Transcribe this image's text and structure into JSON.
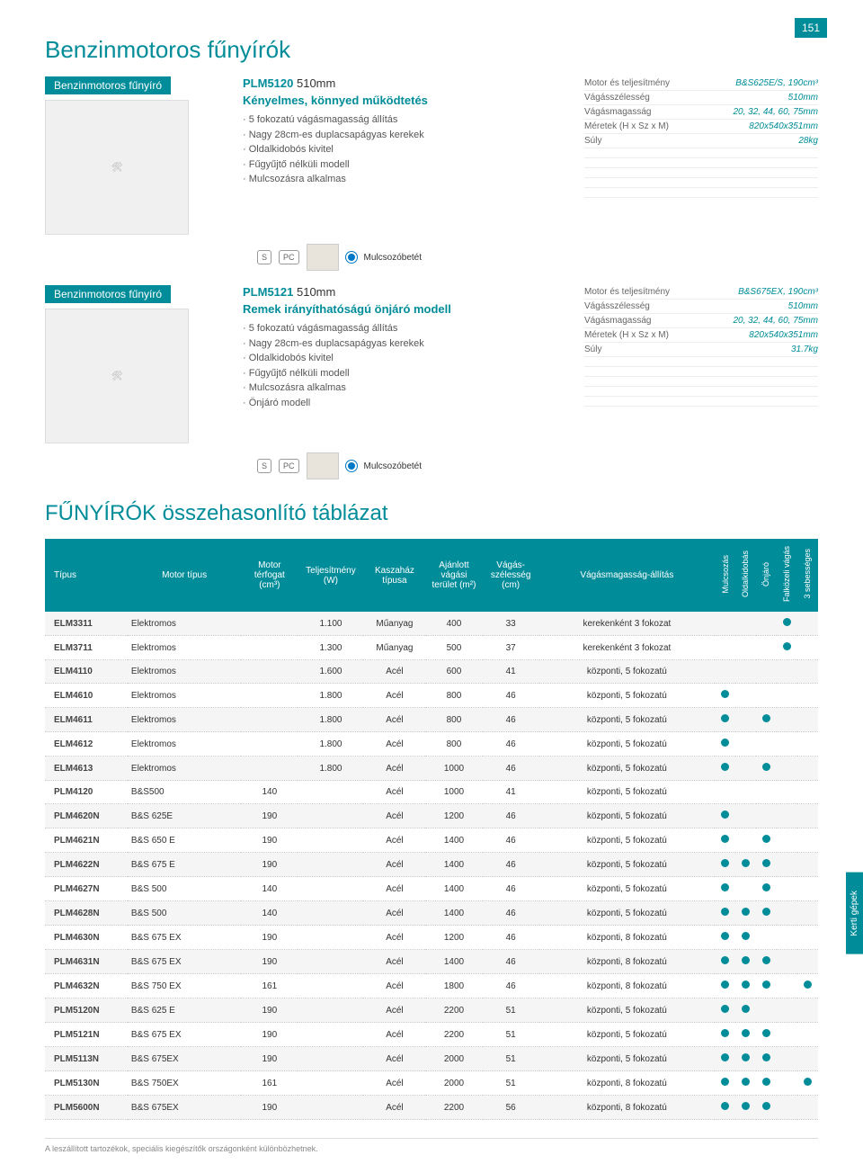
{
  "page_number": "151",
  "title": "Benzinmotoros fűnyírók",
  "side_tab": "Kerti gépek",
  "footnote": "A leszállított tartozékok, speciális kiegészítők országonként különbözhetnek.",
  "products": [
    {
      "category": "Benzinmotoros fűnyíró",
      "model_code": "PLM5120",
      "model_size": "510mm",
      "tagline": "Kényelmes, könnyed működtetés",
      "features": [
        "· 5 fokozatú vágásmagasság állítás",
        "· Nagy 28cm-es duplacsapágyas kerekek",
        "· Oldalkidobós kivitel",
        "· Fűgyűjtő nélküli modell",
        "· Mulcsozásra alkalmas"
      ],
      "specs": [
        {
          "k": "Motor és teljesítmény",
          "v": "B&S625E/S, 190cm³"
        },
        {
          "k": "Vágásszélesség",
          "v": "510mm"
        },
        {
          "k": "Vágásmagasság",
          "v": "20, 32, 44, 60, 75mm"
        },
        {
          "k": "Méretek (H x Sz x M)",
          "v": "820x540x351mm"
        },
        {
          "k": "Súly",
          "v": "28kg"
        }
      ],
      "accessory": "Mulcsozóbetét"
    },
    {
      "category": "Benzinmotoros fűnyíró",
      "model_code": "PLM5121",
      "model_size": "510mm",
      "tagline": "Remek irányíthatóságú önjáró modell",
      "features": [
        "· 5 fokozatú vágásmagasság állítás",
        "· Nagy 28cm-es duplacsapágyas kerekek",
        "· Oldalkidobós kivitel",
        "· Fűgyűjtő nélküli modell",
        "· Mulcsozásra alkalmas",
        "· Önjáró modell"
      ],
      "specs": [
        {
          "k": "Motor és teljesítmény",
          "v": "B&S675EX, 190cm³"
        },
        {
          "k": "Vágásszélesség",
          "v": "510mm"
        },
        {
          "k": "Vágásmagasság",
          "v": "20, 32, 44, 60, 75mm"
        },
        {
          "k": "Méretek (H x Sz x M)",
          "v": "820x540x351mm"
        },
        {
          "k": "Súly",
          "v": "31.7kg"
        }
      ],
      "accessory": "Mulcsozóbetét"
    }
  ],
  "comparison": {
    "title": "FŰNYÍRÓK összehasonlító táblázat",
    "headers": [
      "Típus",
      "Motor típus",
      "Motor térfogat (cm³)",
      "Teljesítmény (W)",
      "Kaszaház típusa",
      "Ajánlott vágási terület (m²)",
      "Vágás-szélesség (cm)",
      "Vágásmagasság-állítás"
    ],
    "flag_headers": [
      "Mulcsozás",
      "Oldalkidobás",
      "Önjáró",
      "Falközeli vágás",
      "3 sebességes"
    ],
    "rows": [
      {
        "c": [
          "ELM3311",
          "Elektromos",
          "",
          "1.100",
          "Műanyag",
          "400",
          "33",
          "kerekenként 3 fokozat"
        ],
        "f": [
          0,
          0,
          0,
          1,
          0
        ]
      },
      {
        "c": [
          "ELM3711",
          "Elektromos",
          "",
          "1.300",
          "Műanyag",
          "500",
          "37",
          "kerekenként 3 fokozat"
        ],
        "f": [
          0,
          0,
          0,
          1,
          0
        ]
      },
      {
        "c": [
          "ELM4110",
          "Elektromos",
          "",
          "1.600",
          "Acél",
          "600",
          "41",
          "központi, 5 fokozatú"
        ],
        "f": [
          0,
          0,
          0,
          0,
          0
        ]
      },
      {
        "c": [
          "ELM4610",
          "Elektromos",
          "",
          "1.800",
          "Acél",
          "800",
          "46",
          "központi, 5 fokozatú"
        ],
        "f": [
          1,
          0,
          0,
          0,
          0
        ]
      },
      {
        "c": [
          "ELM4611",
          "Elektromos",
          "",
          "1.800",
          "Acél",
          "800",
          "46",
          "központi, 5 fokozatú"
        ],
        "f": [
          1,
          0,
          1,
          0,
          0
        ]
      },
      {
        "c": [
          "ELM4612",
          "Elektromos",
          "",
          "1.800",
          "Acél",
          "800",
          "46",
          "központi, 5 fokozatú"
        ],
        "f": [
          1,
          0,
          0,
          0,
          0
        ]
      },
      {
        "c": [
          "ELM4613",
          "Elektromos",
          "",
          "1.800",
          "Acél",
          "1000",
          "46",
          "központi, 5 fokozatú"
        ],
        "f": [
          1,
          0,
          1,
          0,
          0
        ]
      },
      {
        "c": [
          "PLM4120",
          "B&S500",
          "140",
          "",
          "Acél",
          "1000",
          "41",
          "központi, 5 fokozatú"
        ],
        "f": [
          0,
          0,
          0,
          0,
          0
        ]
      },
      {
        "c": [
          "PLM4620N",
          "B&S 625E",
          "190",
          "",
          "Acél",
          "1200",
          "46",
          "központi, 5 fokozatú"
        ],
        "f": [
          1,
          0,
          0,
          0,
          0
        ]
      },
      {
        "c": [
          "PLM4621N",
          "B&S 650 E",
          "190",
          "",
          "Acél",
          "1400",
          "46",
          "központi, 5 fokozatú"
        ],
        "f": [
          1,
          0,
          1,
          0,
          0
        ]
      },
      {
        "c": [
          "PLM4622N",
          "B&S 675 E",
          "190",
          "",
          "Acél",
          "1400",
          "46",
          "központi, 5 fokozatú"
        ],
        "f": [
          1,
          1,
          1,
          0,
          0
        ]
      },
      {
        "c": [
          "PLM4627N",
          "B&S 500",
          "140",
          "",
          "Acél",
          "1400",
          "46",
          "központi, 5 fokozatú"
        ],
        "f": [
          1,
          0,
          1,
          0,
          0
        ]
      },
      {
        "c": [
          "PLM4628N",
          "B&S 500",
          "140",
          "",
          "Acél",
          "1400",
          "46",
          "központi, 5 fokozatú"
        ],
        "f": [
          1,
          1,
          1,
          0,
          0
        ]
      },
      {
        "c": [
          "PLM4630N",
          "B&S 675 EX",
          "190",
          "",
          "Acél",
          "1200",
          "46",
          "központi, 8 fokozatú"
        ],
        "f": [
          1,
          1,
          0,
          0,
          0
        ]
      },
      {
        "c": [
          "PLM4631N",
          "B&S 675 EX",
          "190",
          "",
          "Acél",
          "1400",
          "46",
          "központi, 8 fokozatú"
        ],
        "f": [
          1,
          1,
          1,
          0,
          0
        ]
      },
      {
        "c": [
          "PLM4632N",
          "B&S 750 EX",
          "161",
          "",
          "Acél",
          "1800",
          "46",
          "központi, 8 fokozatú"
        ],
        "f": [
          1,
          1,
          1,
          0,
          1
        ]
      },
      {
        "c": [
          "PLM5120N",
          "B&S 625 E",
          "190",
          "",
          "Acél",
          "2200",
          "51",
          "központi, 5 fokozatú"
        ],
        "f": [
          1,
          1,
          0,
          0,
          0
        ]
      },
      {
        "c": [
          "PLM5121N",
          "B&S 675 EX",
          "190",
          "",
          "Acél",
          "2200",
          "51",
          "központi, 5 fokozatú"
        ],
        "f": [
          1,
          1,
          1,
          0,
          0
        ]
      },
      {
        "c": [
          "PLM5113N",
          "B&S 675EX",
          "190",
          "",
          "Acél",
          "2000",
          "51",
          "központi, 5 fokozatú"
        ],
        "f": [
          1,
          1,
          1,
          0,
          0
        ]
      },
      {
        "c": [
          "PLM5130N",
          "B&S 750EX",
          "161",
          "",
          "Acél",
          "2000",
          "51",
          "központi, 8 fokozatú"
        ],
        "f": [
          1,
          1,
          1,
          0,
          1
        ]
      },
      {
        "c": [
          "PLM5600N",
          "B&S 675EX",
          "190",
          "",
          "Acél",
          "2200",
          "56",
          "központi, 8 fokozatú"
        ],
        "f": [
          1,
          1,
          1,
          0,
          0
        ]
      }
    ]
  }
}
